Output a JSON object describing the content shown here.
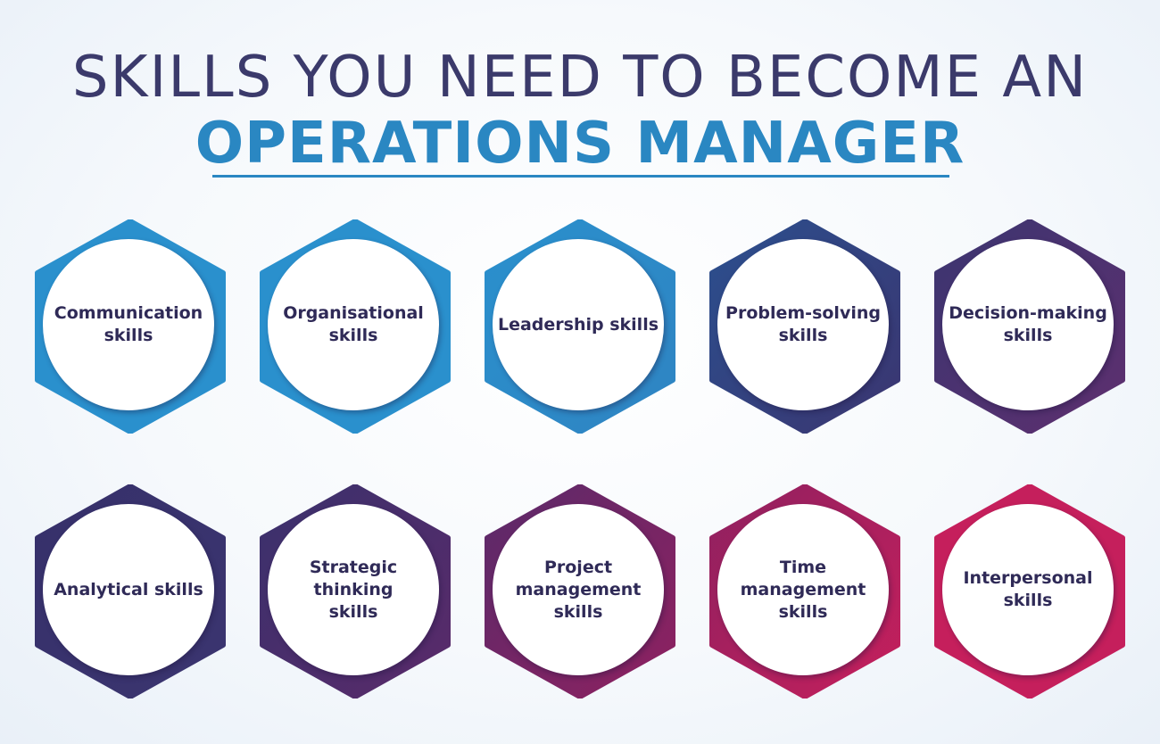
{
  "heading": {
    "line1": "SKILLS YOU NEED TO BECOME AN",
    "line2": "OPERATIONS MANAGER"
  },
  "colors": {
    "heading_dark": "#3b3a6b",
    "heading_accent": "#2a87c2",
    "label_text": "#2f2a57"
  },
  "skills": [
    {
      "label": "Communication skills",
      "icon": "hexagon-badge",
      "gradient": [
        "#2a90cd",
        "#2a90cd"
      ]
    },
    {
      "label": "Organisational skills",
      "icon": "hexagon-badge",
      "gradient": [
        "#2a90cd",
        "#2a90cd"
      ]
    },
    {
      "label": "Leadership skills",
      "icon": "hexagon-badge",
      "gradient": [
        "#2a90cd",
        "#2f84c2"
      ]
    },
    {
      "label": "Problem-solving skills",
      "icon": "hexagon-badge",
      "gradient": [
        "#2b4f8e",
        "#3b3570"
      ]
    },
    {
      "label": "Decision-making skills",
      "icon": "hexagon-badge",
      "gradient": [
        "#3b3570",
        "#5e2f6f"
      ]
    },
    {
      "label": "Analytical skills",
      "icon": "hexagon-badge",
      "gradient": [
        "#36306a",
        "#3b3570"
      ]
    },
    {
      "label": "Strategic thinking skills",
      "icon": "hexagon-badge",
      "gradient": [
        "#3a316c",
        "#5a2a6a"
      ]
    },
    {
      "label": "Project management skills",
      "icon": "hexagon-badge",
      "gradient": [
        "#5a2a6a",
        "#8f2160"
      ]
    },
    {
      "label": "Time management skills",
      "icon": "hexagon-badge",
      "gradient": [
        "#8f2160",
        "#c51f5c"
      ]
    },
    {
      "label": "Interpersonal skills",
      "icon": "hexagon-badge",
      "gradient": [
        "#c51f5c",
        "#c51f5c"
      ]
    }
  ]
}
